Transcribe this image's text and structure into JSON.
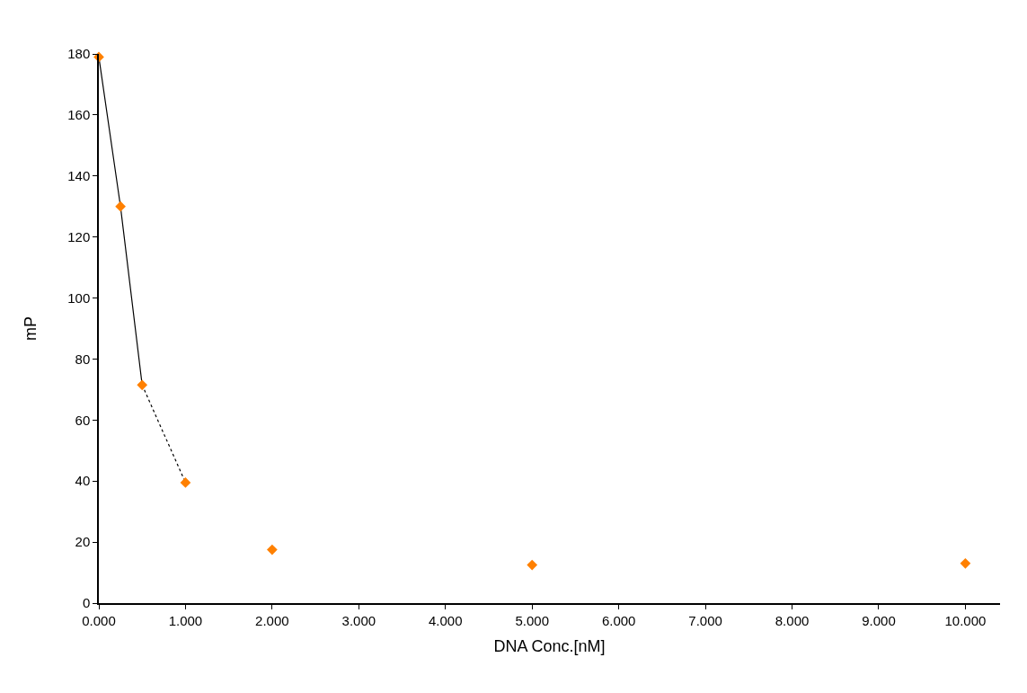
{
  "chart_data": {
    "type": "scatter",
    "xlabel": "DNA Conc.[nM]",
    "ylabel": "mP",
    "xlim": [
      0,
      10.4
    ],
    "xticks": [
      {
        "value": 0,
        "label": "0.000"
      },
      {
        "value": 1,
        "label": "1.000"
      },
      {
        "value": 2,
        "label": "2.000"
      },
      {
        "value": 3,
        "label": "3.000"
      },
      {
        "value": 4,
        "label": "4.000"
      },
      {
        "value": 5,
        "label": "5.000"
      },
      {
        "value": 6,
        "label": "6.000"
      },
      {
        "value": 7,
        "label": "7.000"
      },
      {
        "value": 8,
        "label": "8.000"
      },
      {
        "value": 9,
        "label": "9.000"
      },
      {
        "value": 10,
        "label": "10.000"
      }
    ],
    "ylim": [
      0,
      180
    ],
    "yticks": [
      0,
      20,
      40,
      60,
      80,
      100,
      120,
      140,
      160,
      180
    ],
    "series": [
      {
        "type": "line",
        "color": "#000000",
        "line_style": "solid",
        "marker": "none",
        "x": [
          0,
          0.25,
          0.5
        ],
        "values": [
          179,
          130,
          71.5
        ]
      },
      {
        "type": "line",
        "color": "#000000",
        "line_style": "dotted",
        "marker": "none",
        "x": [
          0.5,
          1
        ],
        "values": [
          71.5,
          39.5
        ]
      },
      {
        "color": "#ff8000",
        "marker": "diamond",
        "x": [
          0,
          0.25,
          0.5,
          1,
          2,
          5,
          10
        ],
        "values": [
          179,
          130,
          71.5,
          39.5,
          17.5,
          12.5,
          13
        ]
      }
    ]
  }
}
